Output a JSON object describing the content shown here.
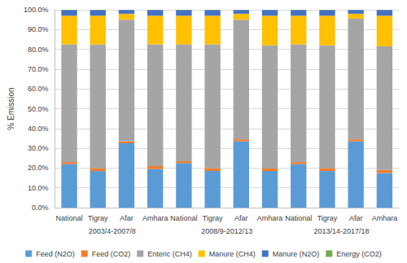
{
  "chart_data": {
    "type": "bar",
    "stacked": true,
    "grid": true,
    "legend": "bottom",
    "y_label": "% Emission",
    "categories": [
      "National",
      "Tigray",
      "Afar",
      "Amhara",
      "National",
      "Tigray",
      "Afar",
      "Amhara",
      "National",
      "Tigray",
      "Afar",
      "Amhara"
    ],
    "groups": [
      "2003/4-2007/8",
      "2008/9-2012/13",
      "2013/14-2017/18"
    ],
    "ylim": [
      0,
      100
    ],
    "yticks": [
      {
        "value": 0,
        "label": "0.0%"
      },
      {
        "value": 10,
        "label": "10.0%"
      },
      {
        "value": 20,
        "label": "20.0%"
      },
      {
        "value": 30,
        "label": "30.0%"
      },
      {
        "value": 40,
        "label": "40.0%"
      },
      {
        "value": 50,
        "label": "50.0%"
      },
      {
        "value": 60,
        "label": "60.0%"
      },
      {
        "value": 70,
        "label": "70.0%"
      },
      {
        "value": 80,
        "label": "80.0%"
      },
      {
        "value": 90,
        "label": "90.0%"
      },
      {
        "value": 100,
        "label": "100.0%"
      }
    ],
    "series": [
      {
        "name": "Feed (N2O)",
        "color": "#5B9BD5",
        "values": [
          22,
          18.5,
          32.5,
          19.5,
          22.5,
          18.5,
          33.5,
          18.5,
          22,
          18.5,
          33.5,
          17.5
        ]
      },
      {
        "name": "Feed (CO2)",
        "color": "#ED7D31",
        "values": [
          1,
          1.5,
          1,
          1.5,
          1,
          1.5,
          1,
          1.5,
          1,
          1.5,
          1,
          1.5
        ]
      },
      {
        "name": "Enteric (CH4)",
        "color": "#A5A5A5",
        "values": [
          59.5,
          62.5,
          61.5,
          61.5,
          59,
          62.5,
          60.5,
          62,
          59.5,
          62,
          61,
          62.5
        ]
      },
      {
        "name": "Manure (CH4)",
        "color": "#FFC000",
        "values": [
          14.5,
          14.5,
          3,
          14.5,
          14.5,
          14.5,
          3,
          15,
          14.5,
          15,
          2.5,
          15.5
        ]
      },
      {
        "name": "Manure (N2O)",
        "color": "#4472C4",
        "values": [
          2.9,
          2.9,
          1.9,
          2.9,
          2.9,
          2.9,
          1.9,
          2.9,
          2.9,
          2.9,
          1.9,
          2.9
        ]
      },
      {
        "name": "Energy (CO2)",
        "color": "#70AD47",
        "values": [
          0.1,
          0.1,
          0.1,
          0.1,
          0.1,
          0.1,
          0.1,
          0.1,
          0.1,
          0.1,
          0.1,
          0.1
        ]
      }
    ]
  }
}
